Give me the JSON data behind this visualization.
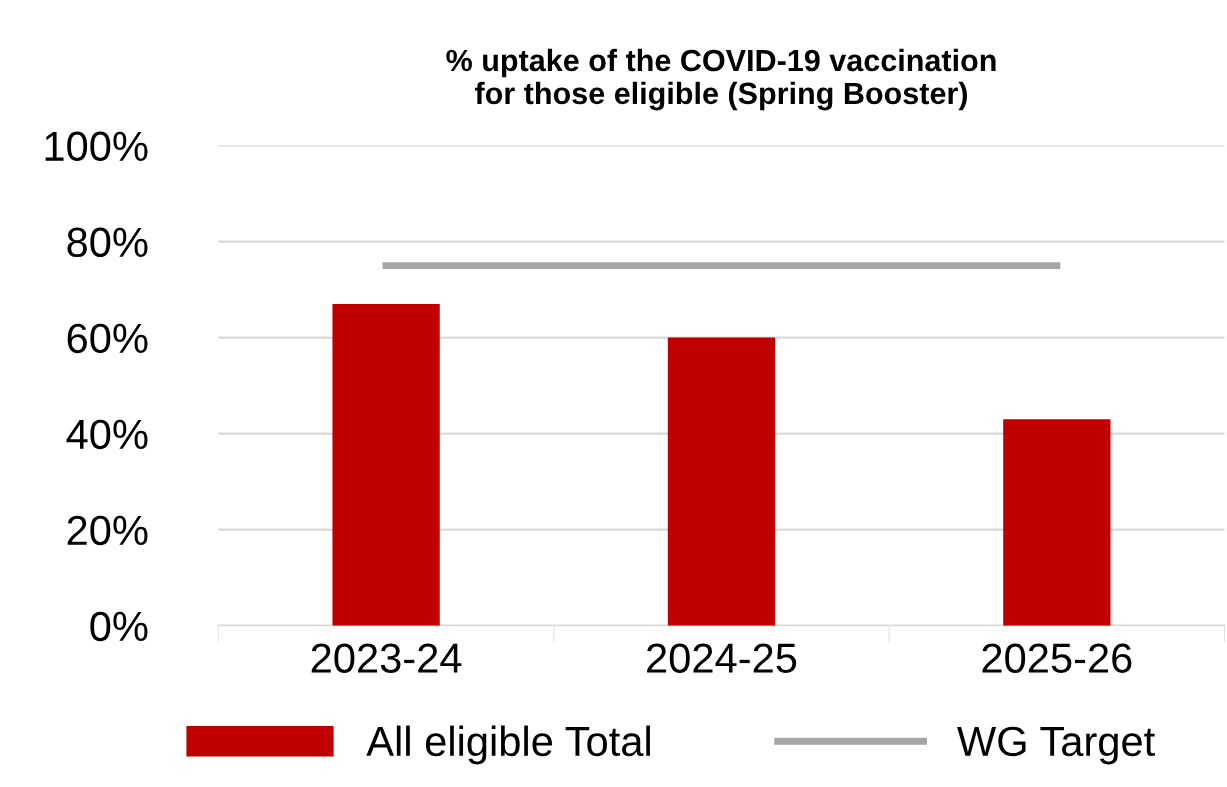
{
  "chart_data": {
    "type": "bar",
    "title": "% uptake of the COVID-19 vaccination\nfor those eligible (Spring Booster)",
    "categories": [
      "2023-24",
      "2024-25",
      "2025-26"
    ],
    "series": [
      {
        "name": "All eligible Total",
        "color": "#c00000",
        "values": [
          67,
          60,
          43
        ]
      },
      {
        "name": "WG Target",
        "type": "line",
        "color": "#a6a6a6",
        "values": [
          75,
          75,
          75
        ]
      }
    ],
    "ylim": [
      0,
      100
    ],
    "yticks": [
      {
        "value": 0,
        "label": "0%"
      },
      {
        "value": 20,
        "label": "20%"
      },
      {
        "value": 40,
        "label": "40%"
      },
      {
        "value": 60,
        "label": "60%"
      },
      {
        "value": 80,
        "label": "80%"
      },
      {
        "value": 100,
        "label": "100%"
      }
    ],
    "grid": "y",
    "legend": "bottom",
    "marker": "none",
    "line_style": "solid"
  }
}
